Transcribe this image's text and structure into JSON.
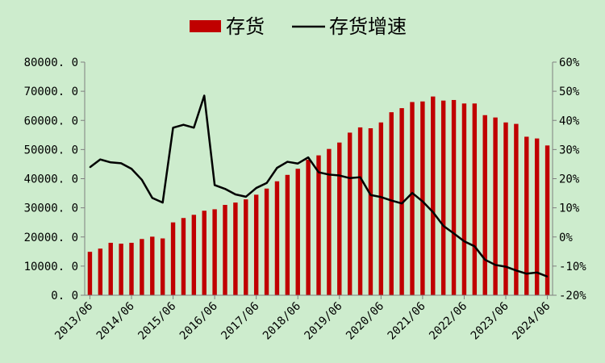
{
  "chart_data": {
    "type": "bar",
    "legend": {
      "position": "top",
      "entries": [
        {
          "name": "存货",
          "kind": "bar"
        },
        {
          "name": "存货增速",
          "kind": "line"
        }
      ]
    },
    "colors": {
      "bar": "#c00000",
      "line": "#000000",
      "background": "#cdeccd",
      "axis": "#7f7f7f"
    },
    "grid": false,
    "y_left": {
      "min": 0,
      "max": 80000,
      "step": 10000,
      "tick_labels": [
        "0. 0",
        "10000. 0",
        "20000. 0",
        "30000. 0",
        "40000. 0",
        "50000. 0",
        "60000. 0",
        "70000. 0",
        "80000. 0"
      ]
    },
    "y_right": {
      "min": -20,
      "max": 60,
      "step": 10,
      "tick_labels": [
        "-20%",
        "-10%",
        "0%",
        "10%",
        "20%",
        "30%",
        "40%",
        "50%",
        "60%"
      ]
    },
    "x_tick_labels": [
      {
        "index": 0,
        "label": "2013/06"
      },
      {
        "index": 4,
        "label": "2014/06"
      },
      {
        "index": 8,
        "label": "2015/06"
      },
      {
        "index": 12,
        "label": "2016/06"
      },
      {
        "index": 16,
        "label": "2017/06"
      },
      {
        "index": 20,
        "label": "2018/06"
      },
      {
        "index": 24,
        "label": "2019/06"
      },
      {
        "index": 28,
        "label": "2020/06"
      },
      {
        "index": 32,
        "label": "2021/06"
      },
      {
        "index": 36,
        "label": "2022/06"
      },
      {
        "index": 40,
        "label": "2023/06"
      },
      {
        "index": 44,
        "label": "2024/06"
      }
    ],
    "series": [
      {
        "name": "存货",
        "type": "bar",
        "axis": "left",
        "values": [
          14900,
          16000,
          18000,
          17700,
          18000,
          19300,
          20100,
          19500,
          25000,
          26500,
          27600,
          29000,
          29500,
          31000,
          31800,
          32900,
          34500,
          36600,
          39100,
          41300,
          43400,
          46500,
          48000,
          50200,
          52400,
          55800,
          57600,
          57300,
          59300,
          62800,
          64200,
          66300,
          66500,
          68200,
          66800,
          67000,
          65800,
          65800,
          61800,
          61000,
          59300,
          58800,
          54400,
          53800,
          51400
        ]
      },
      {
        "name": "存货增速",
        "type": "line",
        "axis": "right",
        "values": [
          23.9,
          26.6,
          25.6,
          25.3,
          23.4,
          19.6,
          13.4,
          11.8,
          37.5,
          38.5,
          37.5,
          48.5,
          17.8,
          16.5,
          14.6,
          13.8,
          16.8,
          18.5,
          23.7,
          25.8,
          25.2,
          27.3,
          22.2,
          21.4,
          21.1,
          20.2,
          20.5,
          14.4,
          13.7,
          12.5,
          11.5,
          15.1,
          12.2,
          8.5,
          3.8,
          1.2,
          -1.5,
          -3.2,
          -7.8,
          -9.6,
          -10.2,
          -11.5,
          -12.6,
          -12.2,
          -13.6
        ]
      }
    ]
  }
}
